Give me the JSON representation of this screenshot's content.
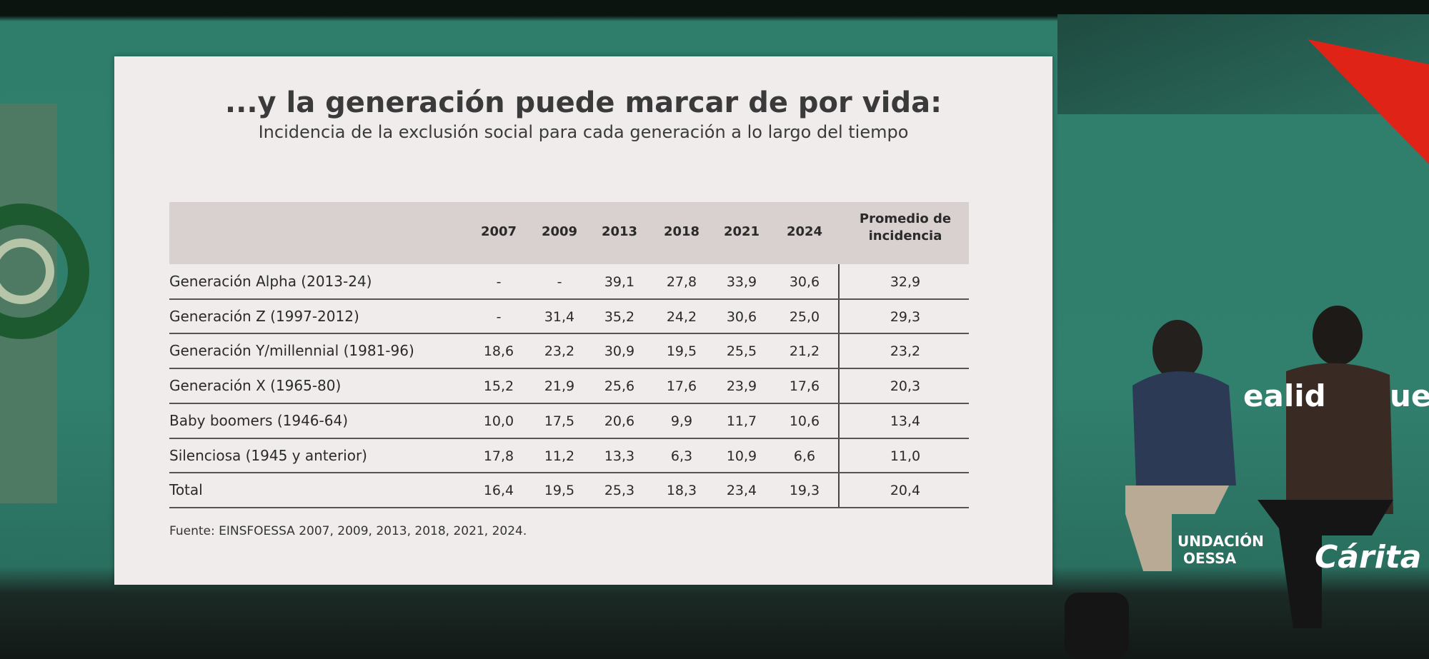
{
  "slide": {
    "title": "...y la generación puede marcar de por vida:",
    "subtitle": "Incidencia de la exclusión social para cada generación a lo largo del tiempo",
    "table": {
      "header": [
        "2007",
        "2009",
        "2013",
        "2018",
        "2021",
        "2024",
        "Promedio de incidencia"
      ],
      "rows": [
        [
          "Generación Alpha (2013-24)",
          "-",
          "-",
          "39,1",
          "27,8",
          "33,9",
          "30,6",
          "32,9"
        ],
        [
          "Generación Z (1997-2012)",
          "-",
          "31,4",
          "35,2",
          "24,2",
          "30,6",
          "25,0",
          "29,3"
        ],
        [
          "Generación Y/millennial (1981-96)",
          "18,6",
          "23,2",
          "30,9",
          "19,5",
          "25,5",
          "21,2",
          "23,2"
        ],
        [
          "Generación X (1965-80)",
          "15,2",
          "21,9",
          "25,6",
          "17,6",
          "23,9",
          "17,6",
          "20,3"
        ],
        [
          "Baby boomers (1946-64)",
          "10,0",
          "17,5",
          "20,6",
          "9,9",
          "11,7",
          "10,6",
          "13,4"
        ],
        [
          "Silenciosa (1945 y anterior)",
          "17,8",
          "11,2",
          "13,3",
          "6,3",
          "10,9",
          "6,6",
          "11,0"
        ],
        [
          "Total",
          "16,4",
          "19,5",
          "25,3",
          "18,3",
          "23,4",
          "19,3",
          "20,4"
        ]
      ]
    },
    "source": "Fuente: EINSFOESSA 2007, 2009, 2013, 2018, 2021, 2024."
  },
  "stage": {
    "texts": [
      "ealid",
      "uel",
      "UNDACIÓN",
      "OESSA",
      "Cárita"
    ]
  }
}
